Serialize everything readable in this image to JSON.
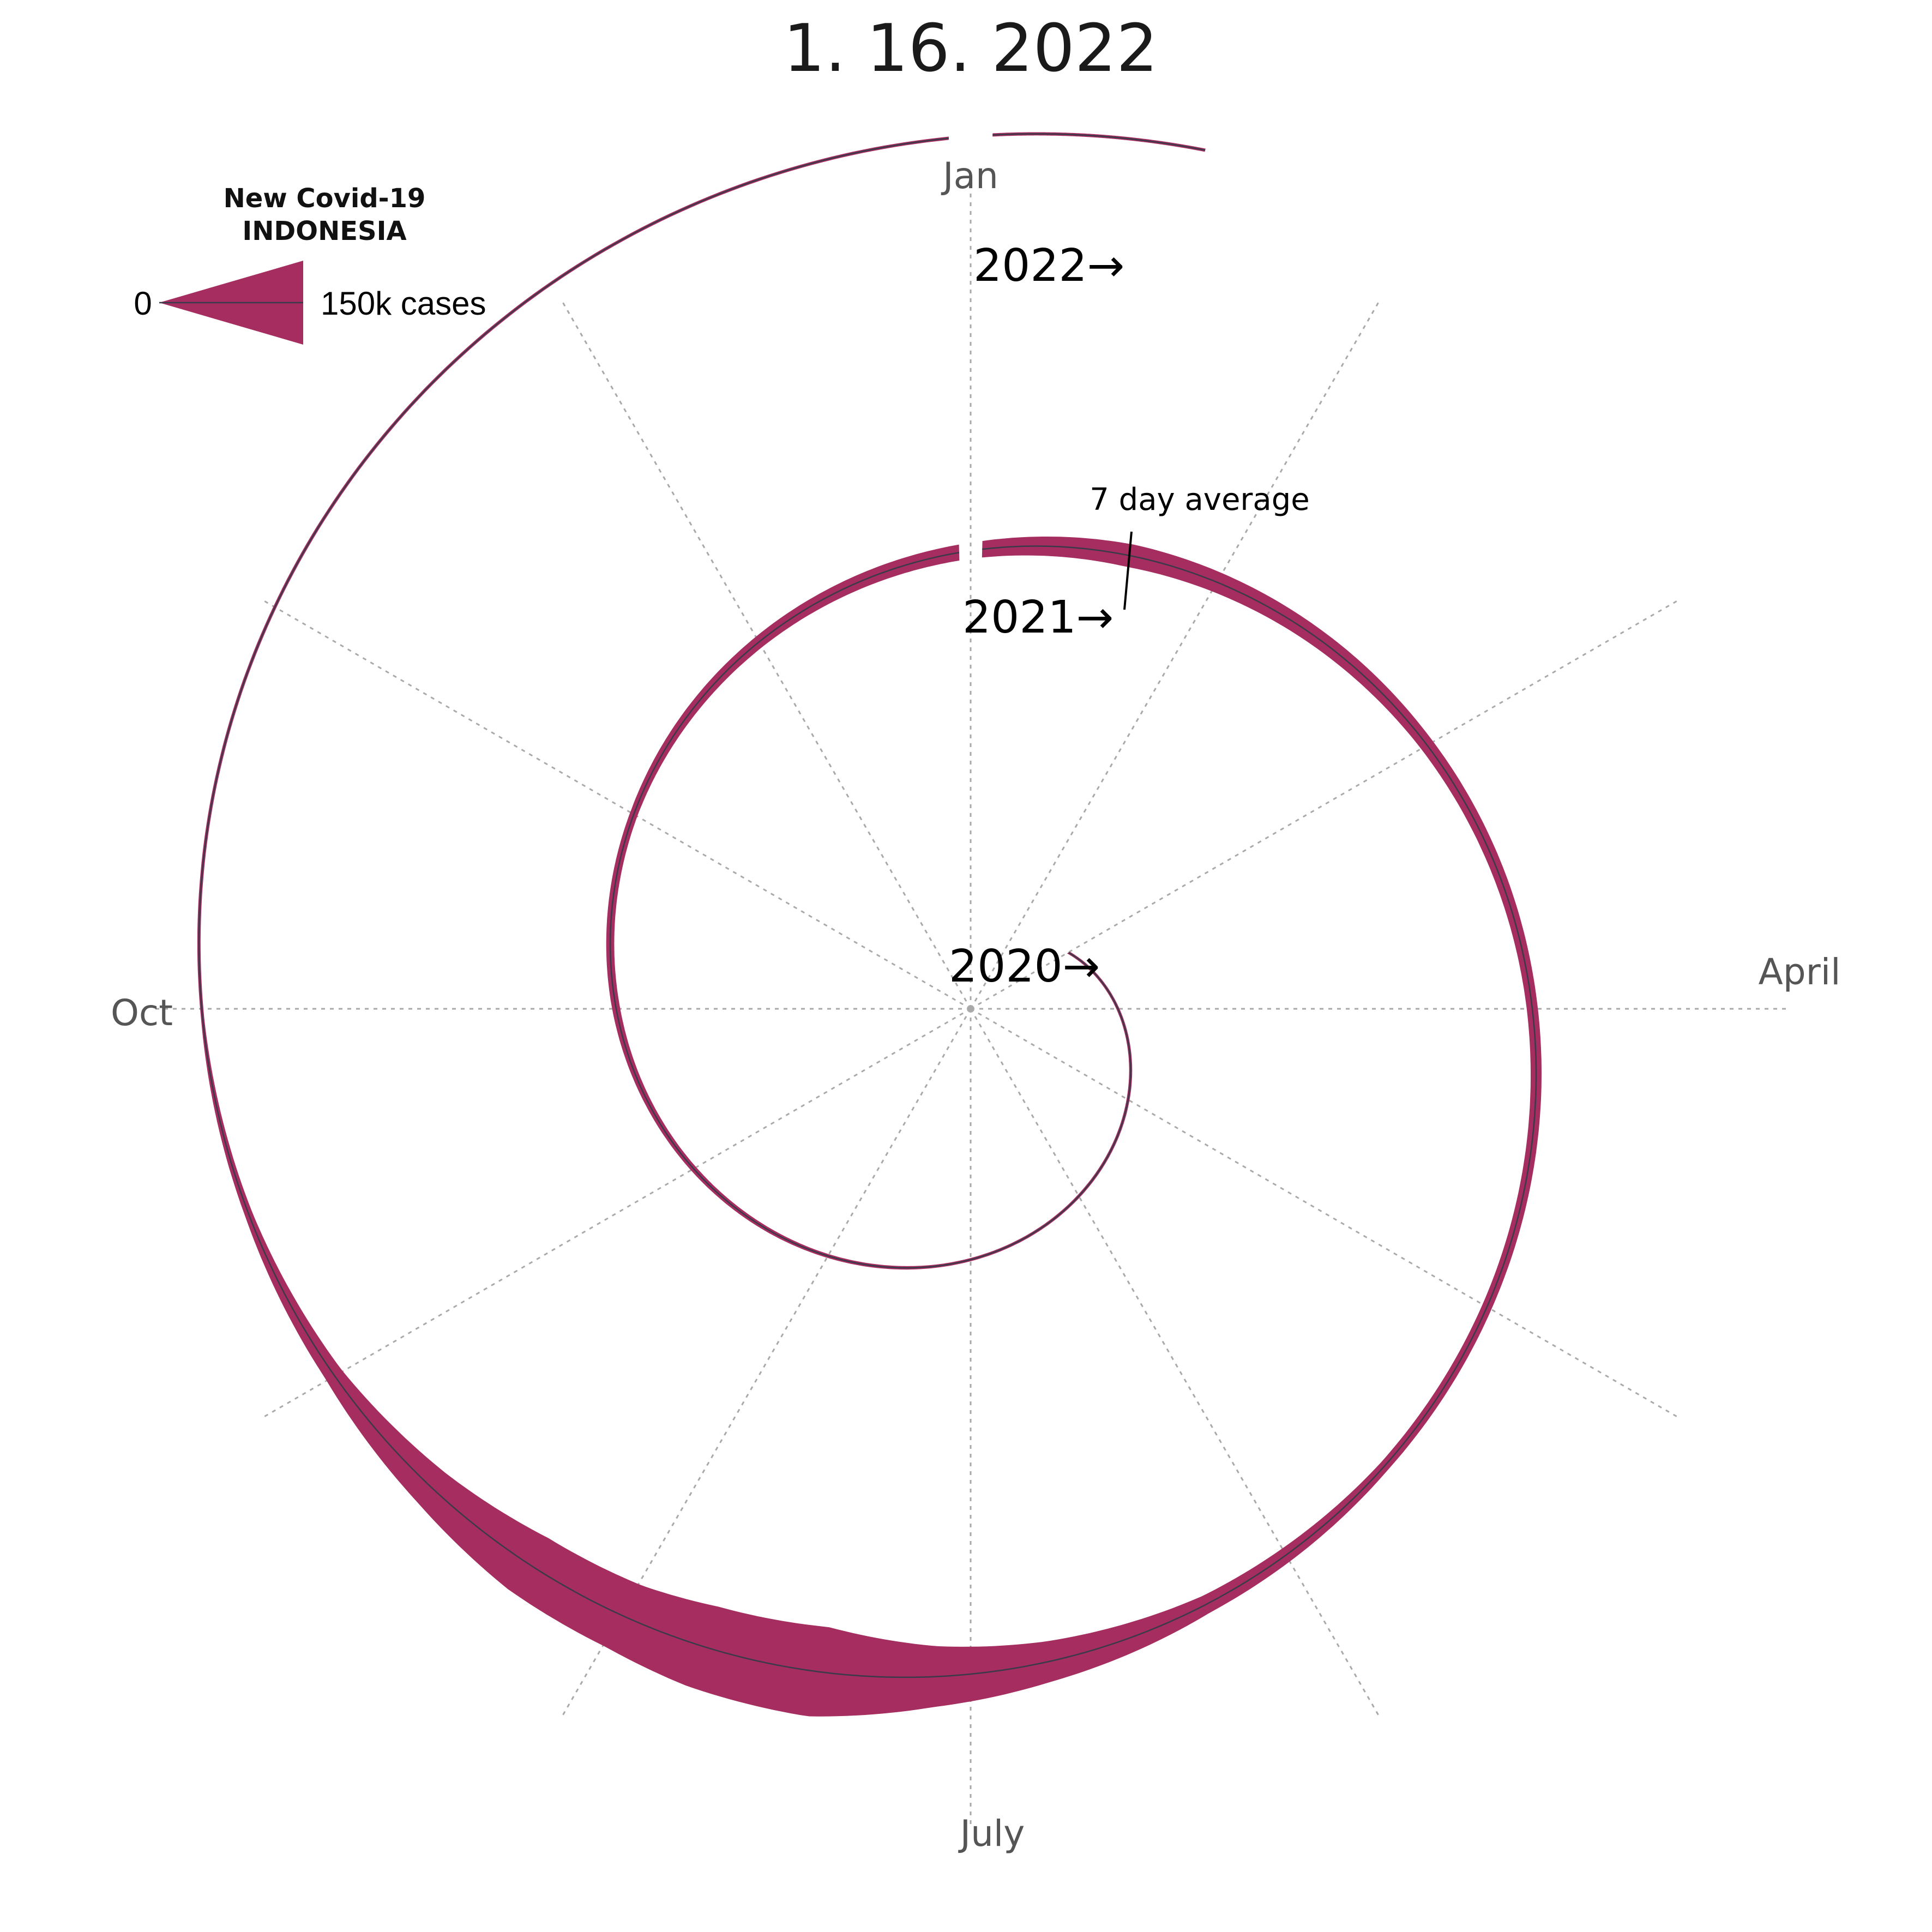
{
  "title": "1. 16. 2022",
  "colors": {
    "band": "#a52d5f",
    "midline": "#3a3a4a",
    "spokes": "#a9a9a9",
    "background": "#ffffff"
  },
  "legend": {
    "title_line1": "New Covid-19",
    "title_line2": "INDONESIA",
    "min_label": "0",
    "max_label": "150k cases"
  },
  "annotation": {
    "text": "7 day average"
  },
  "chart_data": {
    "type": "area",
    "subtype": "polar-spiral",
    "title": "1. 16. 2022",
    "series": [
      {
        "name": "New Covid-19 INDONESIA",
        "unit": "cases per day (7 day average)",
        "legend_max": 150000,
        "points": [
          {
            "date": "2020-03-02",
            "value": 0
          },
          {
            "date": "2020-04-01",
            "value": 150
          },
          {
            "date": "2020-05-01",
            "value": 300
          },
          {
            "date": "2020-06-01",
            "value": 800
          },
          {
            "date": "2020-07-01",
            "value": 1500
          },
          {
            "date": "2020-08-01",
            "value": 2000
          },
          {
            "date": "2020-09-01",
            "value": 3000
          },
          {
            "date": "2020-10-01",
            "value": 4000
          },
          {
            "date": "2020-11-01",
            "value": 4000
          },
          {
            "date": "2020-12-01",
            "value": 6000
          },
          {
            "date": "2021-01-01",
            "value": 8000
          },
          {
            "date": "2021-01-20",
            "value": 11500
          },
          {
            "date": "2021-02-10",
            "value": 9000
          },
          {
            "date": "2021-03-01",
            "value": 7000
          },
          {
            "date": "2021-04-01",
            "value": 5500
          },
          {
            "date": "2021-05-01",
            "value": 5000
          },
          {
            "date": "2021-05-20",
            "value": 5000
          },
          {
            "date": "2021-06-10",
            "value": 9000
          },
          {
            "date": "2021-06-25",
            "value": 20000
          },
          {
            "date": "2021-07-05",
            "value": 30000
          },
          {
            "date": "2021-07-15",
            "value": 45000
          },
          {
            "date": "2021-07-25",
            "value": 42000
          },
          {
            "date": "2021-08-01",
            "value": 35000
          },
          {
            "date": "2021-08-10",
            "value": 32000
          },
          {
            "date": "2021-08-20",
            "value": 20000
          },
          {
            "date": "2021-09-01",
            "value": 9000
          },
          {
            "date": "2021-09-15",
            "value": 4000
          },
          {
            "date": "2021-10-01",
            "value": 1500
          },
          {
            "date": "2021-11-01",
            "value": 500
          },
          {
            "date": "2021-12-01",
            "value": 250
          },
          {
            "date": "2022-01-01",
            "value": 300
          },
          {
            "date": "2022-01-16",
            "value": 900
          }
        ]
      }
    ],
    "angular_axis": {
      "labels": [
        "Jan",
        "April",
        "July",
        "Oct"
      ],
      "spokes": 12,
      "grid": true
    },
    "year_markers": [
      "2020→",
      "2021→",
      "2022→"
    ],
    "annotations": [
      "7 day average"
    ]
  }
}
